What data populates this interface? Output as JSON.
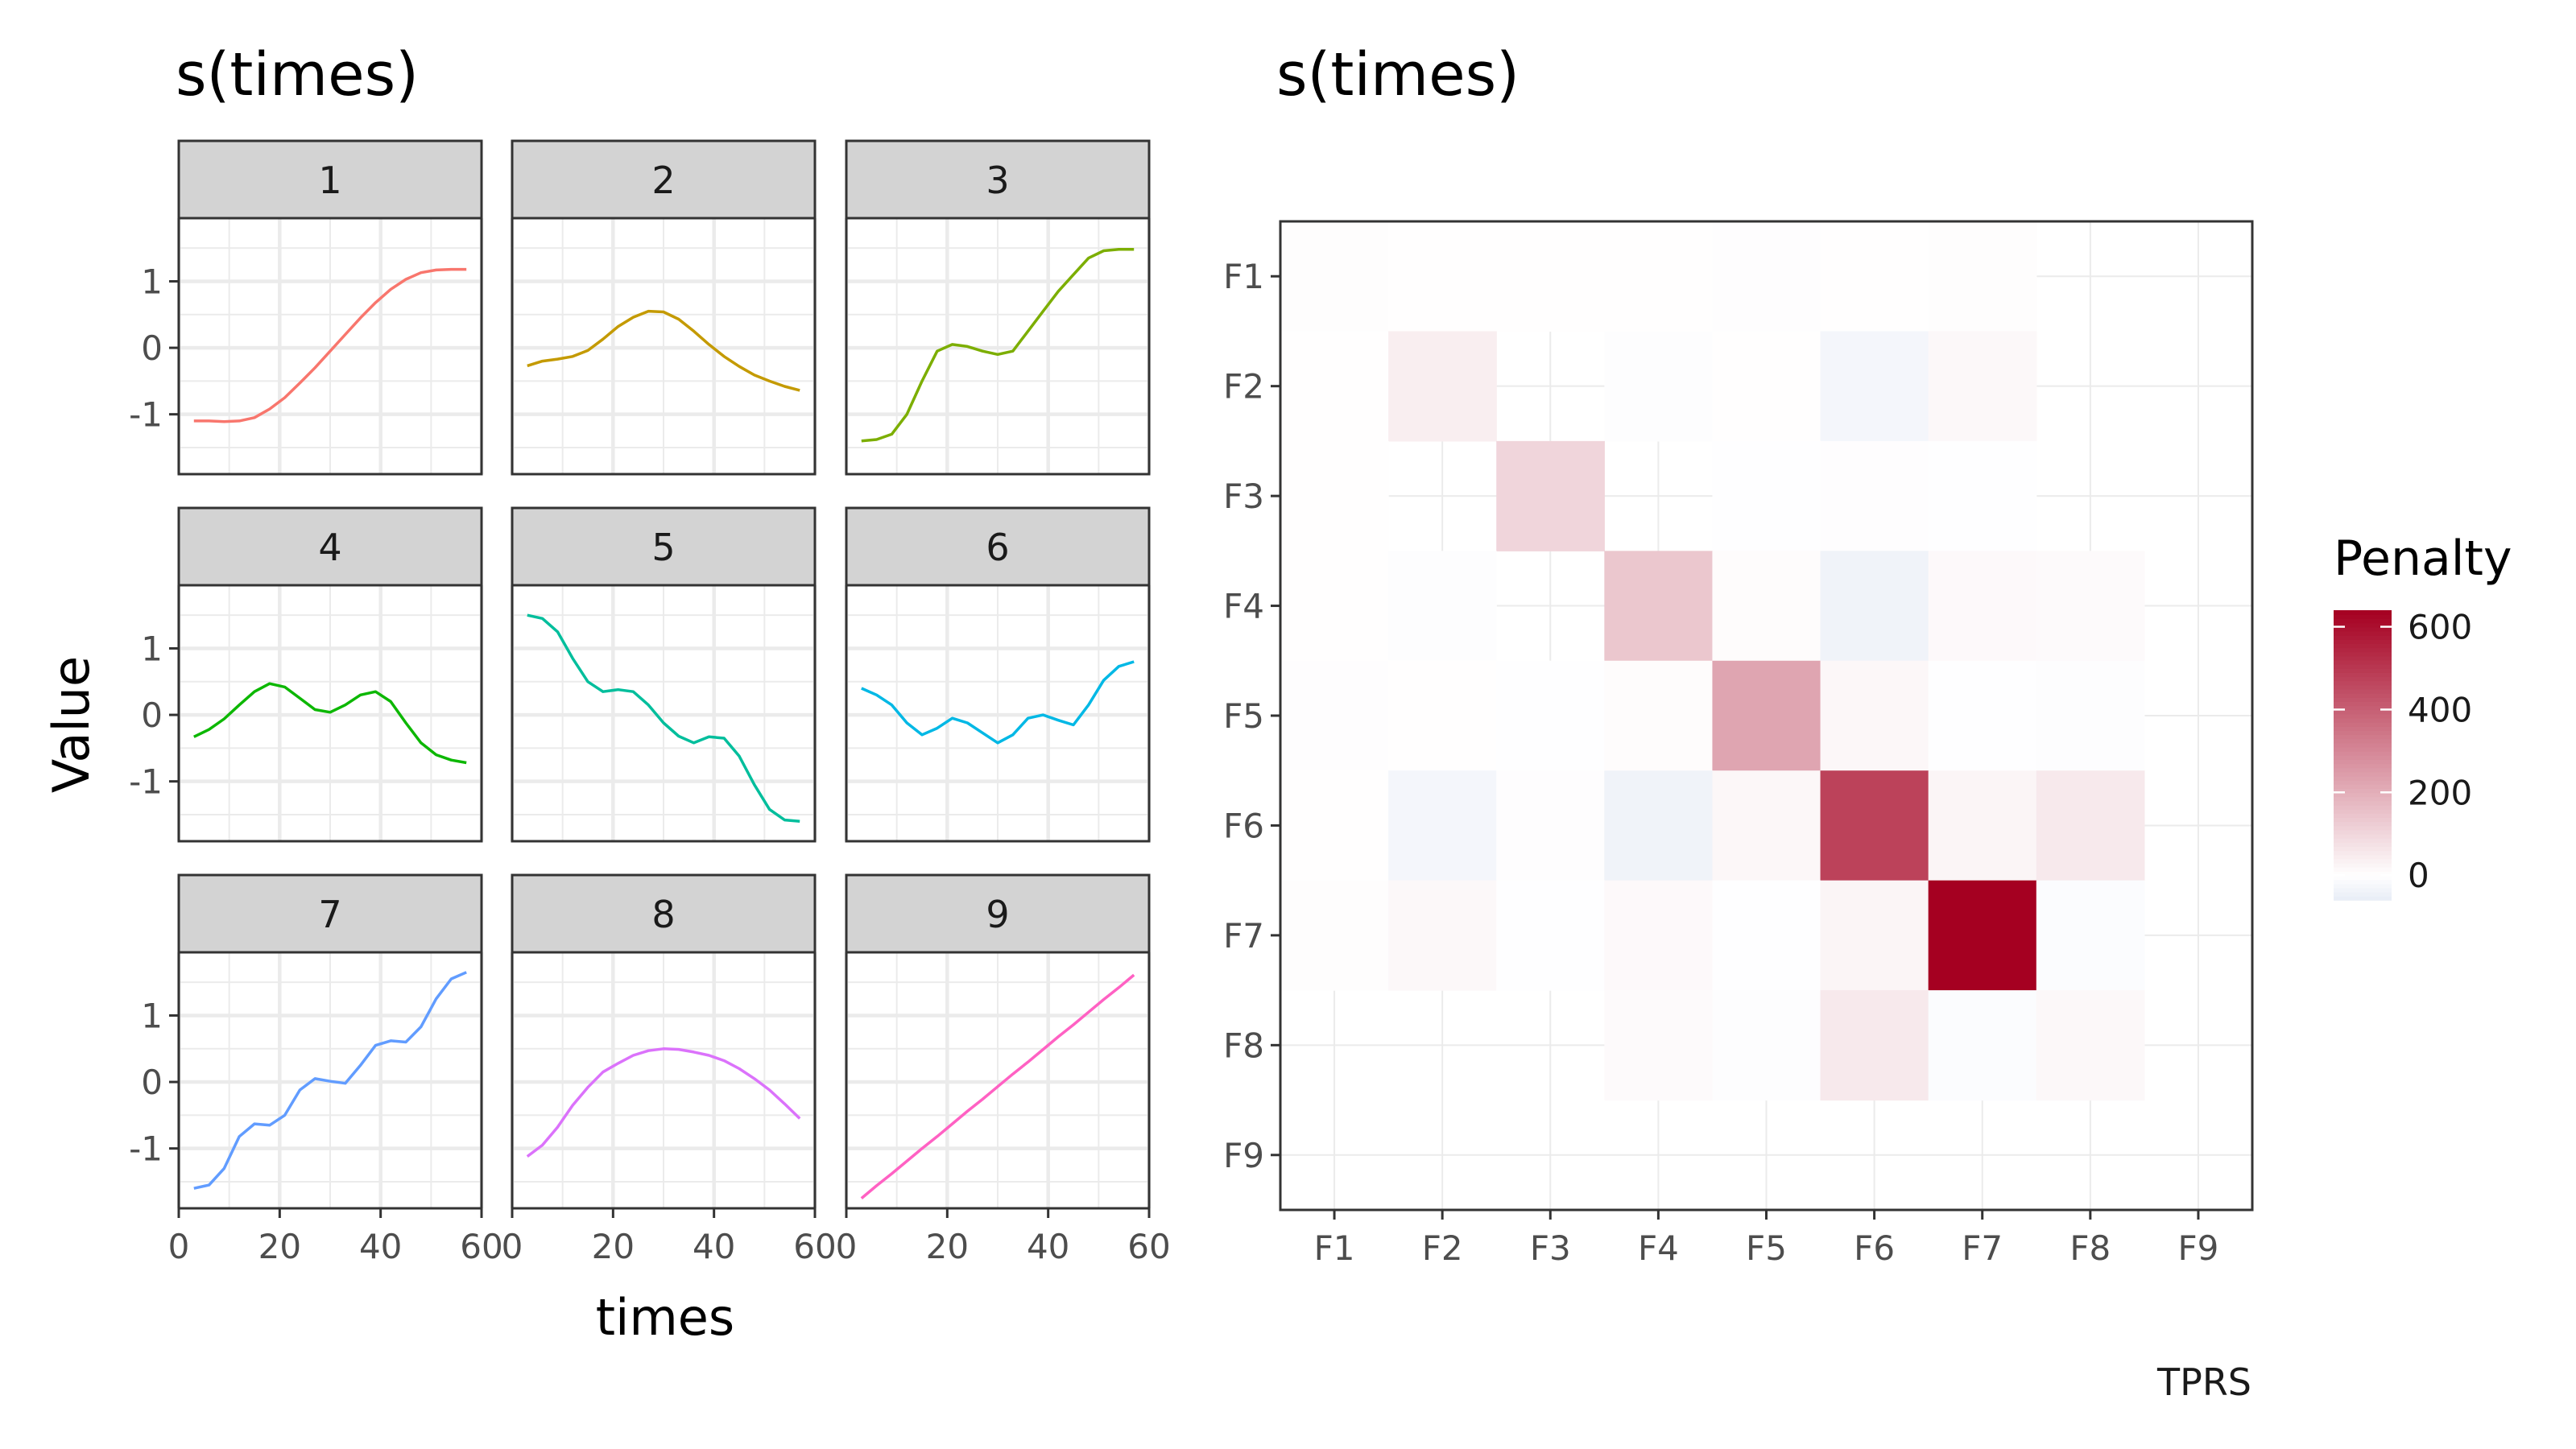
{
  "left_panel": {
    "title": "s(times)",
    "xlabel": "times",
    "ylabel": "Value",
    "strip_fill": "#d3d3d3",
    "grid_color": "#ebebeb"
  },
  "right_panel": {
    "title": "s(times)",
    "caption": "TPRS",
    "legend_title": "Penalty"
  },
  "chart_data": [
    {
      "type": "line",
      "title": "s(times)",
      "xlabel": "times",
      "ylabel": "Value",
      "facets": [
        "1",
        "2",
        "3",
        "4",
        "5",
        "6",
        "7",
        "8",
        "9"
      ],
      "xlim": [
        0,
        60
      ],
      "ylim": [
        -1.9,
        1.95
      ],
      "x_ticks": [
        0,
        20,
        40,
        60
      ],
      "y_ticks": [
        -1,
        0,
        1
      ],
      "x": [
        3,
        6,
        9,
        12,
        15,
        18,
        21,
        24,
        27,
        30,
        33,
        36,
        39,
        42,
        45,
        48,
        51,
        54,
        57
      ],
      "series": [
        {
          "name": "1",
          "color": "#f8766d",
          "values": [
            -1.1,
            -1.1,
            -1.11,
            -1.1,
            -1.05,
            -0.92,
            -0.75,
            -0.53,
            -0.3,
            -0.05,
            0.2,
            0.45,
            0.68,
            0.88,
            1.03,
            1.13,
            1.17,
            1.18,
            1.18
          ]
        },
        {
          "name": "2",
          "color": "#c49a00",
          "values": [
            -0.27,
            -0.2,
            -0.17,
            -0.13,
            -0.04,
            0.13,
            0.32,
            0.46,
            0.55,
            0.54,
            0.43,
            0.25,
            0.05,
            -0.13,
            -0.28,
            -0.41,
            -0.5,
            -0.58,
            -0.64
          ]
        },
        {
          "name": "3",
          "color": "#7cae00",
          "values": [
            -1.4,
            -1.38,
            -1.3,
            -1.0,
            -0.5,
            -0.05,
            0.05,
            0.02,
            -0.05,
            -0.1,
            -0.05,
            0.25,
            0.55,
            0.85,
            1.1,
            1.35,
            1.46,
            1.48,
            1.48
          ]
        },
        {
          "name": "4",
          "color": "#0cb702",
          "values": [
            -0.33,
            -0.22,
            -0.06,
            0.15,
            0.35,
            0.47,
            0.42,
            0.25,
            0.08,
            0.04,
            0.15,
            0.3,
            0.35,
            0.2,
            -0.12,
            -0.42,
            -0.6,
            -0.68,
            -0.72
          ]
        },
        {
          "name": "5",
          "color": "#00be9c",
          "values": [
            1.5,
            1.45,
            1.25,
            0.85,
            0.5,
            0.35,
            0.38,
            0.35,
            0.15,
            -0.12,
            -0.32,
            -0.42,
            -0.33,
            -0.35,
            -0.62,
            -1.05,
            -1.42,
            -1.58,
            -1.6
          ]
        },
        {
          "name": "6",
          "color": "#00b8e5",
          "values": [
            0.4,
            0.3,
            0.15,
            -0.12,
            -0.3,
            -0.2,
            -0.05,
            -0.12,
            -0.27,
            -0.42,
            -0.3,
            -0.05,
            0.0,
            -0.08,
            -0.15,
            0.15,
            0.52,
            0.73,
            0.8
          ]
        },
        {
          "name": "7",
          "color": "#619cff",
          "values": [
            -1.6,
            -1.55,
            -1.3,
            -0.82,
            -0.63,
            -0.65,
            -0.5,
            -0.12,
            0.05,
            0.01,
            -0.02,
            0.25,
            0.55,
            0.62,
            0.6,
            0.83,
            1.25,
            1.55,
            1.65
          ]
        },
        {
          "name": "8",
          "color": "#db72fb",
          "values": [
            -1.12,
            -0.95,
            -0.68,
            -0.35,
            -0.08,
            0.15,
            0.28,
            0.4,
            0.47,
            0.5,
            0.49,
            0.45,
            0.4,
            0.32,
            0.2,
            0.05,
            -0.12,
            -0.33,
            -0.55
          ]
        },
        {
          "name": "9",
          "color": "#ff61c3",
          "values": [
            -1.75,
            -1.56,
            -1.38,
            -1.19,
            -1.0,
            -0.82,
            -0.63,
            -0.44,
            -0.26,
            -0.07,
            0.12,
            0.3,
            0.49,
            0.68,
            0.86,
            1.05,
            1.24,
            1.42,
            1.61
          ]
        }
      ]
    },
    {
      "type": "heatmap",
      "title": "s(times)",
      "caption": "TPRS",
      "x_categories": [
        "F1",
        "F2",
        "F3",
        "F4",
        "F5",
        "F6",
        "F7",
        "F8",
        "F9"
      ],
      "y_categories": [
        "F1",
        "F2",
        "F3",
        "F4",
        "F5",
        "F6",
        "F7",
        "F8",
        "F9"
      ],
      "legend_title": "Penalty",
      "legend_ticks": [
        0,
        200,
        400,
        600
      ],
      "value_range": [
        -60,
        640
      ],
      "colors": {
        "low": "#e7ecf6",
        "mid": "#ffffff",
        "high": "#a50021"
      },
      "values": [
        [
          6,
          2,
          3,
          2,
          4,
          3,
          5,
          0,
          0
        ],
        [
          2,
          42,
          0,
          -5,
          2,
          -28,
          18,
          0,
          0
        ],
        [
          3,
          0,
          105,
          0,
          -3,
          4,
          -2,
          0,
          0
        ],
        [
          2,
          -5,
          0,
          140,
          8,
          -38,
          15,
          12,
          0
        ],
        [
          4,
          2,
          -3,
          8,
          225,
          20,
          -3,
          -5,
          0
        ],
        [
          3,
          -28,
          4,
          -38,
          20,
          475,
          25,
          55,
          0
        ],
        [
          5,
          18,
          -2,
          15,
          -3,
          25,
          640,
          -10,
          0
        ],
        [
          0,
          0,
          0,
          12,
          -5,
          55,
          -10,
          18,
          0
        ],
        [
          0,
          0,
          0,
          0,
          0,
          0,
          0,
          0,
          0
        ]
      ]
    }
  ]
}
